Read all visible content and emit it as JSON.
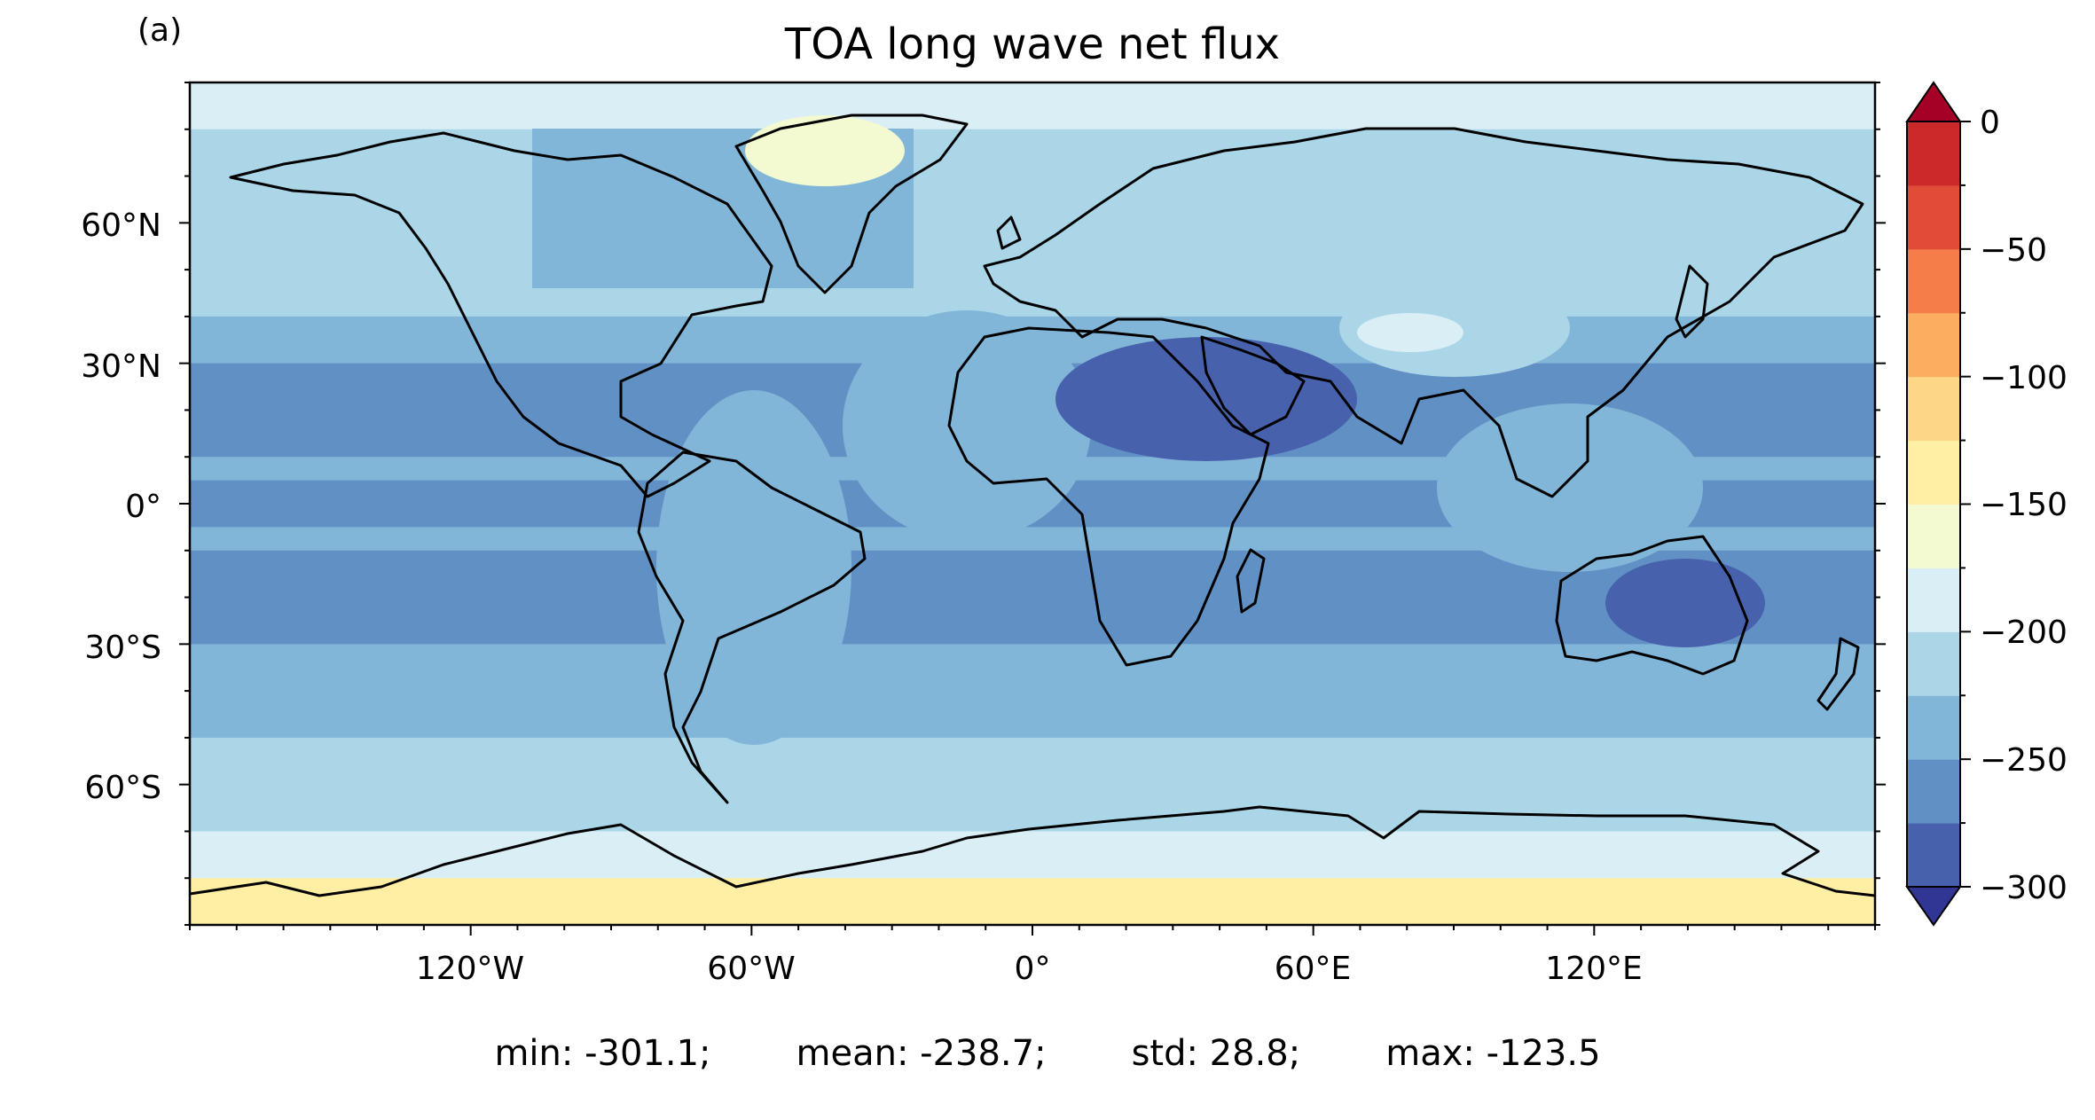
{
  "panel_label": "(a)",
  "title": "TOA long wave net flux",
  "stats": {
    "min": "min: -301.1;",
    "mean": "mean: -238.7;",
    "std": "std: 28.8;",
    "max": "max: -123.5"
  },
  "map": {
    "projection": "PlateCarree",
    "lon_range": [
      -180,
      180
    ],
    "lat_range": [
      -90,
      90
    ],
    "x_ticks": [
      "120°W",
      "60°W",
      "0°",
      "60°E",
      "120°E"
    ],
    "y_ticks": [
      "60°N",
      "30°N",
      "0°",
      "30°S",
      "60°S"
    ],
    "coastlines": true
  },
  "colorbar": {
    "ticks": [
      "0",
      "−50",
      "−100",
      "−150",
      "−200",
      "−250",
      "−300"
    ],
    "range": [
      -300,
      0
    ],
    "extend": "both",
    "levels": [
      -300,
      -275,
      -250,
      -225,
      -200,
      -175,
      -150,
      -125,
      -100,
      -75,
      -50,
      -25,
      0
    ],
    "colors": [
      "#4761ad",
      "#6191c4",
      "#82b6d9",
      "#abd6e8",
      "#daeef5",
      "#f3fad2",
      "#feefa5",
      "#fdd688",
      "#fdad60",
      "#f57d4a",
      "#e14c38",
      "#cc2a2a"
    ],
    "under_color": "#313695",
    "over_color": "#a50026"
  },
  "chart_data": {
    "type": "heatmap",
    "title": "TOA long wave net flux",
    "xlabel": "",
    "ylabel": "",
    "x_ticks": [
      "120°W",
      "60°W",
      "0°",
      "60°E",
      "120°E"
    ],
    "y_ticks": [
      "60°N",
      "30°N",
      "0°",
      "30°S",
      "60°S"
    ],
    "zonal_band_approx": [
      {
        "lat": [
          80,
          90
        ],
        "value": -180
      },
      {
        "lat": [
          60,
          80
        ],
        "value": -205
      },
      {
        "lat": [
          40,
          60
        ],
        "value": -225
      },
      {
        "lat": [
          30,
          40
        ],
        "value": -245
      },
      {
        "lat": [
          10,
          30
        ],
        "value": -268
      },
      {
        "lat": [
          5,
          10
        ],
        "value": -250
      },
      {
        "lat": [
          -5,
          5
        ],
        "value": -270
      },
      {
        "lat": [
          -10,
          -5
        ],
        "value": -250
      },
      {
        "lat": [
          -30,
          -10
        ],
        "value": -268
      },
      {
        "lat": [
          -40,
          -30
        ],
        "value": -250
      },
      {
        "lat": [
          -50,
          -40
        ],
        "value": -230
      },
      {
        "lat": [
          -70,
          -50
        ],
        "value": -210
      },
      {
        "lat": [
          -80,
          -70
        ],
        "value": -190
      },
      {
        "lat": [
          -90,
          -80
        ],
        "value": -150
      }
    ],
    "colorbar_range": [
      -300,
      0
    ]
  }
}
